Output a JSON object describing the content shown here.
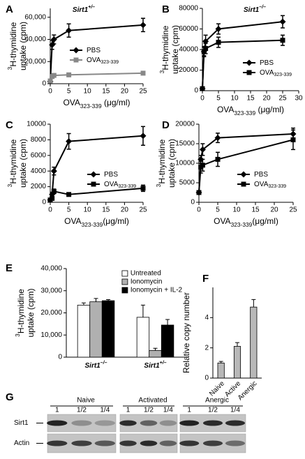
{
  "chart_data": [
    {
      "panel": "A",
      "type": "line",
      "title": [
        "Sirt1",
        "+/–"
      ],
      "x_label": [
        "OVA",
        "323-339",
        " (μg/ml)"
      ],
      "y_label": [
        "3",
        "H-thymidine",
        "uptake (cpm)"
      ],
      "x": [
        0,
        0.5,
        1,
        5,
        25
      ],
      "xlim": [
        0,
        25
      ],
      "xticks": [
        0,
        5,
        10,
        15,
        20,
        25
      ],
      "ylim": [
        0,
        68000
      ],
      "yticks": [
        0,
        {
          "value": 20000,
          "label": "20,000"
        },
        {
          "value": 40000,
          "label": "40,000"
        },
        {
          "value": 60000,
          "label": "60,000"
        }
      ],
      "legend": "center",
      "series": [
        {
          "name": [
            "PBS"
          ],
          "color": "#000000",
          "marker": "diamond",
          "values": [
            2000,
            35000,
            40000,
            48000,
            53000
          ],
          "errors": [
            500,
            4000,
            4000,
            6000,
            6000
          ]
        },
        {
          "name": [
            "OVA",
            "323-339"
          ],
          "color": "#888888",
          "marker": "square",
          "values": [
            2500,
            6500,
            7500,
            8000,
            9500
          ],
          "errors": [
            500,
            1000,
            1000,
            1000,
            1500
          ]
        }
      ]
    },
    {
      "panel": "B",
      "type": "line",
      "title": [
        "Sirt1",
        "–/–"
      ],
      "x_label": [
        "OVA",
        "323-339",
        " (μg/ml)"
      ],
      "y_label": [
        "3",
        "H-thymidine",
        "uptake (cpm)"
      ],
      "x": [
        0,
        0.5,
        1,
        5,
        25
      ],
      "xlim": [
        0,
        30
      ],
      "xticks": [
        0,
        5,
        10,
        15,
        20,
        25,
        30
      ],
      "ylim": [
        0,
        80000
      ],
      "yticks": [
        0,
        20000,
        40000,
        60000,
        80000
      ],
      "legend": "lower right",
      "series": [
        {
          "name": [
            "PBS"
          ],
          "color": "#000000",
          "marker": "diamond",
          "values": [
            2000,
            38000,
            48000,
            60000,
            67000
          ],
          "errors": [
            500,
            5000,
            6000,
            5000,
            6000
          ]
        },
        {
          "name": [
            "OVA",
            "323-339"
          ],
          "color": "#000000",
          "marker": "square",
          "values": [
            2000,
            38000,
            41000,
            47000,
            49000
          ],
          "errors": [
            500,
            4000,
            5000,
            5000,
            5000
          ]
        }
      ]
    },
    {
      "panel": "C",
      "type": "line",
      "x_label": [
        "OVA",
        "323-339",
        "(μg/ml)"
      ],
      "y_label": [
        "3",
        "H-thymidine",
        "uptake (cpm)"
      ],
      "x": [
        0,
        0.5,
        1,
        5,
        25
      ],
      "xlim": [
        0,
        25
      ],
      "xticks": [
        0,
        5,
        10,
        15,
        20,
        25
      ],
      "ylim": [
        0,
        10000
      ],
      "yticks": [
        0,
        2000,
        4000,
        6000,
        8000,
        10000
      ],
      "legend": "lower right",
      "series": [
        {
          "name": [
            "PBS"
          ],
          "color": "#000000",
          "marker": "diamond",
          "values": [
            300,
            1000,
            4000,
            7800,
            8500
          ],
          "errors": [
            100,
            300,
            500,
            1000,
            1200
          ]
        },
        {
          "name": [
            "OVA",
            "323-339"
          ],
          "color": "#000000",
          "marker": "square",
          "values": [
            300,
            500,
            1400,
            1000,
            1800
          ],
          "errors": [
            100,
            200,
            300,
            200,
            400
          ]
        }
      ]
    },
    {
      "panel": "D",
      "type": "line",
      "x_label": [
        "OVA",
        "323-339",
        "(μg/ml)"
      ],
      "y_label": [
        "3",
        "H-thymidine",
        "uptake (cpm)"
      ],
      "x": [
        0,
        0.5,
        1,
        5,
        25
      ],
      "xlim": [
        0,
        25
      ],
      "xticks": [
        0,
        5,
        10,
        15,
        20,
        25
      ],
      "ylim": [
        0,
        20000
      ],
      "yticks": [
        0,
        5000,
        10000,
        15000,
        20000
      ],
      "legend": "lower right",
      "series": [
        {
          "name": [
            "PBS"
          ],
          "color": "#000000",
          "marker": "diamond",
          "values": [
            2500,
            11000,
            13500,
            16500,
            17500
          ],
          "errors": [
            300,
            1000,
            1500,
            1200,
            1500
          ]
        },
        {
          "name": [
            "OVA",
            "323-339"
          ],
          "color": "#000000",
          "marker": "square",
          "values": [
            2500,
            9000,
            9500,
            11000,
            16000
          ],
          "errors": [
            300,
            1500,
            1500,
            1800,
            2500
          ]
        }
      ]
    },
    {
      "panel": "E",
      "type": "bar",
      "y_label": [
        "3",
        "H-thymidine",
        "uptake (cpm)"
      ],
      "categories": [
        [
          "Sirt1",
          "–/–"
        ],
        [
          "Sirt1",
          "+/–"
        ]
      ],
      "ylim": [
        0,
        40000
      ],
      "yticks": [
        0,
        {
          "value": 10000,
          "label": "10,000"
        },
        {
          "value": 20000,
          "label": "20,000"
        },
        {
          "value": 30000,
          "label": "30,000"
        },
        {
          "value": 40000,
          "label": "40,000"
        }
      ],
      "legend": "upper right",
      "series": [
        {
          "name": "Untreated",
          "color": "#ffffff",
          "values": [
            23500,
            18000
          ],
          "errors": [
            1000,
            5500
          ]
        },
        {
          "name": "Ionomycin",
          "color": "#b0b0b0",
          "values": [
            25000,
            3000
          ],
          "errors": [
            1500,
            1000
          ]
        },
        {
          "name": "Ionomycin + IL-2",
          "color": "#000000",
          "values": [
            25500,
            14500
          ],
          "errors": [
            500,
            2500
          ]
        }
      ]
    },
    {
      "panel": "F",
      "type": "bar",
      "y_label": [
        "Relative copy number"
      ],
      "categories": [
        [
          "Naive"
        ],
        [
          "Active"
        ],
        [
          "Anergic"
        ]
      ],
      "category_label_rotation": -45,
      "ylim": [
        0,
        6
      ],
      "yticks": [
        0,
        2,
        4
      ],
      "series": [
        {
          "color": "#b8b8b8",
          "values": [
            1,
            2.1,
            4.7
          ],
          "errors": [
            0.1,
            0.25,
            0.5
          ]
        }
      ]
    }
  ],
  "blot": {
    "panel": "G",
    "rows": [
      "Sirt1",
      "Actin"
    ],
    "groups": [
      {
        "name": "Naive",
        "lanes": [
          "1",
          "1/2",
          "1/4"
        ]
      },
      {
        "name": "Activated",
        "lanes": [
          "1",
          "1/2",
          "1/4"
        ]
      },
      {
        "name": "Anergic",
        "lanes": [
          "1",
          "1/2",
          "1/4"
        ]
      }
    ]
  }
}
